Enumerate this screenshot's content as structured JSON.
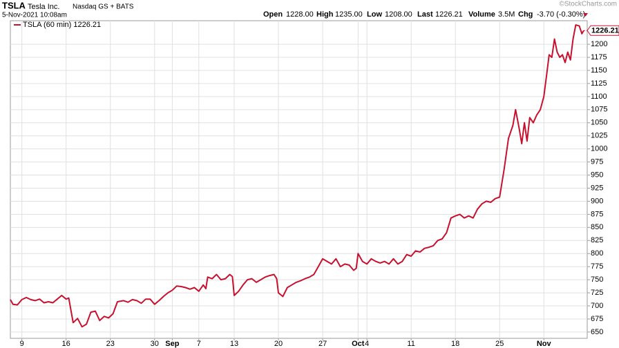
{
  "header": {
    "symbol": "TSLA",
    "company": "Tesla Inc.",
    "exchange": "Nasdaq GS + BATS",
    "timestamp": "5-Nov-2021 10:08am",
    "open_label": "Open",
    "open": "1228.00",
    "high_label": "High",
    "high": "1235.00",
    "low_label": "Low",
    "low": "1208.00",
    "last_label": "Last",
    "last": "1226.21",
    "volume_label": "Volume",
    "volume": "3.5M",
    "chg_label": "Chg",
    "chg": "-3.70 (-0.30%)",
    "watermark": "©StockCharts.com"
  },
  "chart_data": {
    "type": "line",
    "x": [
      -1.3,
      -1,
      -0.5,
      0,
      0.5,
      1,
      1.5,
      2,
      2.5,
      3,
      3.5,
      4,
      4.5,
      5,
      5.3,
      5.8,
      6.3,
      6.8,
      7.3,
      7.8,
      8.3,
      8.8,
      9.3,
      9.8,
      10.3,
      10.8,
      11.5,
      12,
      12.5,
      13,
      13.5,
      14,
      14.5,
      15,
      15.5,
      16,
      16.5,
      17,
      17.5,
      18,
      18.5,
      19,
      19.5,
      20,
      20.5,
      20.8,
      21,
      21.5,
      22,
      22.5,
      23,
      23.5,
      23.8,
      24,
      24.5,
      25,
      25.5,
      26,
      26.5,
      27,
      27.5,
      28,
      28.5,
      28.8,
      29,
      29.5,
      30,
      30.5,
      31,
      31.5,
      32,
      32.5,
      33,
      33.5,
      34,
      34.5,
      35,
      35.5,
      36,
      36.5,
      37,
      37.5,
      37.8,
      38,
      38.5,
      39,
      39.5,
      40,
      40.5,
      41,
      41.5,
      42,
      42.5,
      43,
      43.5,
      44,
      44.5,
      45,
      45.5,
      46,
      46.5,
      47,
      47.5,
      48,
      48.5,
      49,
      49.5,
      50,
      50.5,
      51,
      51.5,
      52,
      52.5,
      53,
      53.5,
      54,
      54.5,
      55,
      55.5,
      55.8,
      56.2,
      56.5,
      56.8,
      57.1,
      57.4,
      57.8,
      58.2,
      58.6,
      59,
      59.3,
      59.6,
      59.9,
      60.2,
      60.5,
      60.8,
      61.1,
      61.4,
      61.7,
      62,
      62.3,
      62.6,
      63,
      63.3,
      63.5
    ],
    "series": [
      {
        "name": "TSLA (60 min) 1226.21",
        "color": "#c8102e",
        "values": [
          712,
          703,
          702,
          712,
          716,
          712,
          710,
          713,
          706,
          708,
          706,
          713,
          720,
          713,
          715,
          668,
          676,
          660,
          665,
          688,
          690,
          672,
          680,
          677,
          685,
          708,
          710,
          707,
          712,
          710,
          705,
          713,
          713,
          703,
          710,
          718,
          725,
          730,
          738,
          737,
          735,
          732,
          735,
          728,
          740,
          733,
          755,
          752,
          760,
          750,
          752,
          760,
          756,
          720,
          728,
          740,
          750,
          752,
          745,
          750,
          755,
          758,
          760,
          752,
          725,
          718,
          735,
          740,
          745,
          748,
          752,
          755,
          760,
          775,
          790,
          785,
          780,
          790,
          775,
          780,
          778,
          768,
          772,
          800,
          785,
          780,
          790,
          785,
          782,
          785,
          780,
          790,
          780,
          785,
          798,
          795,
          805,
          803,
          810,
          812,
          815,
          825,
          828,
          840,
          868,
          872,
          875,
          868,
          872,
          868,
          885,
          895,
          900,
          898,
          905,
          908,
          960,
          1020,
          1045,
          1075,
          1040,
          1010,
          1050,
          1015,
          1060,
          1050,
          1065,
          1075,
          1100,
          1140,
          1180,
          1175,
          1210,
          1185,
          1175,
          1180,
          1165,
          1185,
          1170,
          1210,
          1237,
          1235,
          1220,
          1226.21
        ]
      }
    ],
    "xlim": [
      -1.3,
      63.9
    ],
    "ylim": [
      638,
      1245
    ],
    "xticks": [
      {
        "value": 0,
        "label": "9"
      },
      {
        "value": 5,
        "label": "16"
      },
      {
        "value": 10,
        "label": "23"
      },
      {
        "value": 15,
        "label": "30"
      },
      {
        "value": 17,
        "label": "Sep"
      },
      {
        "value": 20,
        "label": "7"
      },
      {
        "value": 24,
        "label": "13"
      },
      {
        "value": 29,
        "label": "20"
      },
      {
        "value": 34,
        "label": "27"
      },
      {
        "value": 38,
        "label": "Oct"
      },
      {
        "value": 39,
        "label": "4"
      },
      {
        "value": 44,
        "label": "11"
      },
      {
        "value": 49,
        "label": "18"
      },
      {
        "value": 54,
        "label": "25"
      },
      {
        "value": 59,
        "label": "Nov"
      }
    ],
    "yticks": [
      650,
      675,
      700,
      725,
      750,
      775,
      800,
      825,
      850,
      875,
      900,
      925,
      950,
      975,
      1000,
      1025,
      1050,
      1075,
      1100,
      1125,
      1150,
      1175,
      1200
    ],
    "grid": true
  }
}
